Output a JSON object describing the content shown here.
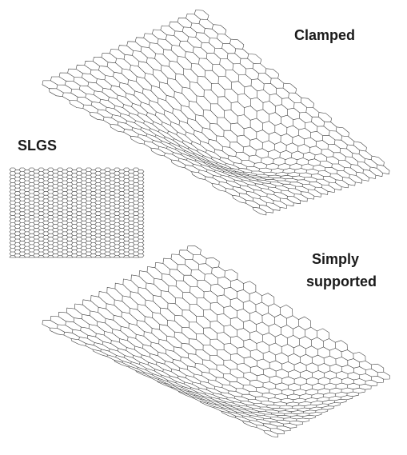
{
  "labels": {
    "clamped": "Clamped",
    "slgs": "SLGS",
    "simply": [
      "Simply",
      "supported"
    ]
  }
}
